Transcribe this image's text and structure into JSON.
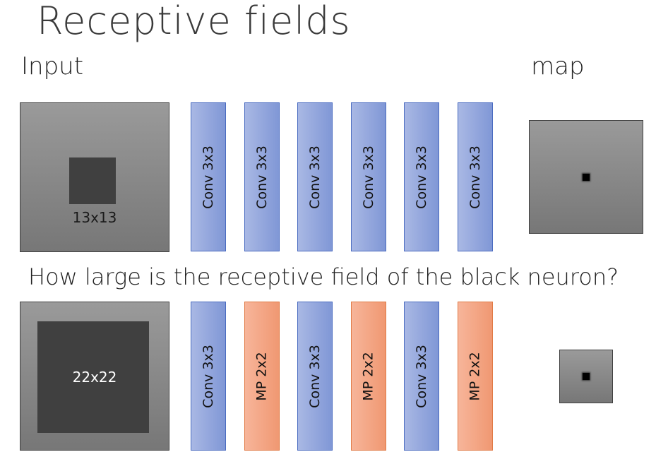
{
  "title": "Receptive fields",
  "labels": {
    "input": "Input",
    "map": "map",
    "question": "How large is the receptive field of the black neuron?"
  },
  "row1": {
    "input_region": "13x13",
    "layers": [
      {
        "type": "conv",
        "label": "Conv 3x3"
      },
      {
        "type": "conv",
        "label": "Conv 3x3"
      },
      {
        "type": "conv",
        "label": "Conv 3x3"
      },
      {
        "type": "conv",
        "label": "Conv 3x3"
      },
      {
        "type": "conv",
        "label": "Conv 3x3"
      },
      {
        "type": "conv",
        "label": "Conv 3x3"
      }
    ]
  },
  "row2": {
    "input_region": "22x22",
    "layers": [
      {
        "type": "conv",
        "label": "Conv 3x3"
      },
      {
        "type": "mp",
        "label": "MP 2x2"
      },
      {
        "type": "conv",
        "label": "Conv 3x3"
      },
      {
        "type": "mp",
        "label": "MP 2x2"
      },
      {
        "type": "conv",
        "label": "Conv 3x3"
      },
      {
        "type": "mp",
        "label": "MP 2x2"
      }
    ]
  },
  "colors": {
    "conv": "#8fa3dc",
    "maxpool": "#f4a785",
    "input_gray": "#888888",
    "region_dark": "#404040",
    "neuron": "#000000"
  }
}
